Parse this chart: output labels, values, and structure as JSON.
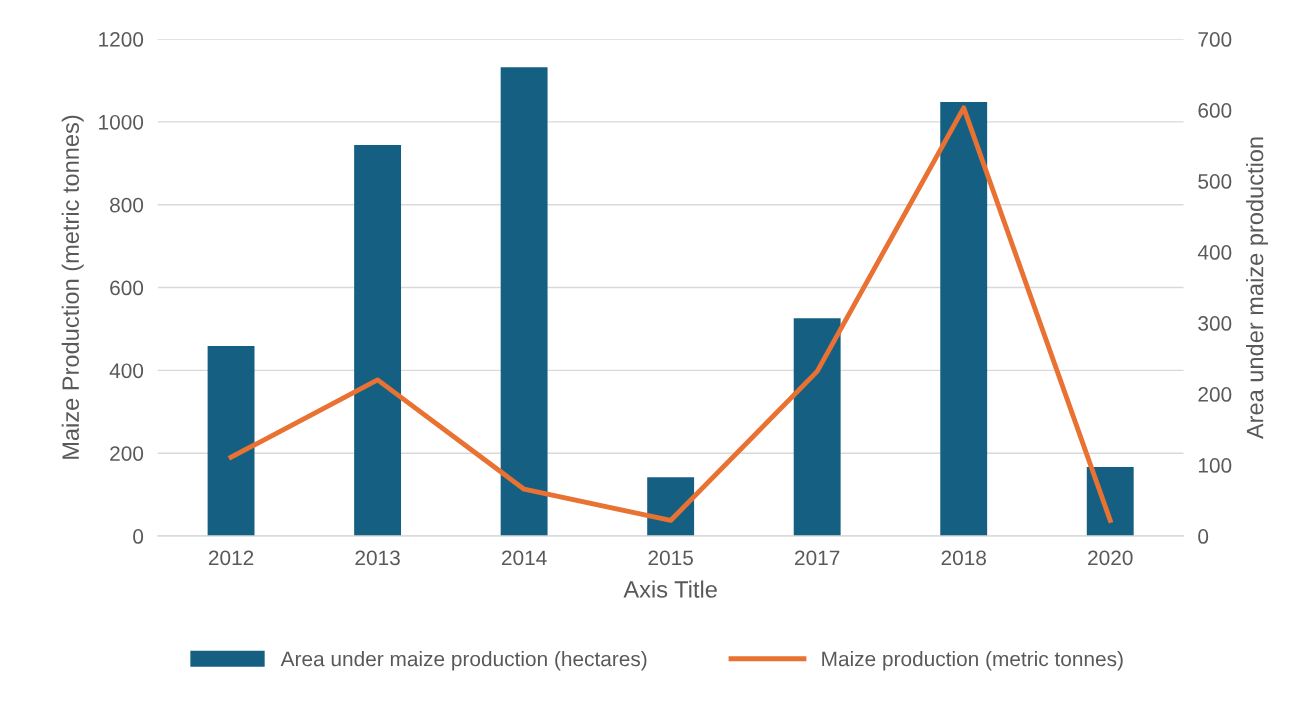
{
  "chart_data": {
    "type": "bar",
    "xlabel": "Axis Title",
    "ylabel": "Maize Production (metric tonnes)",
    "y2label": "Area under maize production",
    "categories": [
      "2012",
      "2013",
      "2014",
      "2015",
      "2017",
      "2018",
      "2020"
    ],
    "series": [
      {
        "name": "Area under maize production (hectares)",
        "color": "#156082",
        "values": [
          459,
          944,
          1132,
          142,
          526,
          1048,
          167
        ]
      },
      {
        "name": "Maize production (metric tonnes)",
        "type": "line",
        "axis": "y2",
        "color": "#e97132",
        "values": [
          111,
          220,
          66,
          22,
          232,
          603,
          22
        ]
      }
    ],
    "ylim": [
      0,
      1200
    ],
    "yticks": [
      0,
      200,
      400,
      600,
      800,
      1000,
      1200
    ],
    "y2lim": [
      0,
      700
    ],
    "y2ticks": [
      0,
      100,
      200,
      300,
      400,
      500,
      600,
      700
    ],
    "grid": "y",
    "legend": "bottom",
    "line_style": "solid",
    "marker": "none"
  }
}
